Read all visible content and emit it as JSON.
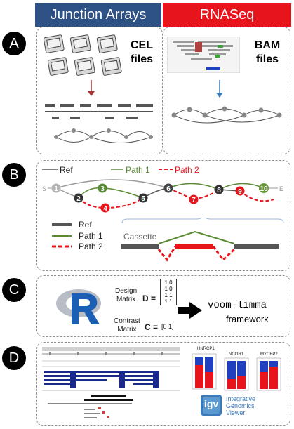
{
  "headers": {
    "left": "Junction Arrays",
    "right": "RNASeq",
    "left_color": "#2e5286",
    "right_color": "#e8141c"
  },
  "badges": [
    "A",
    "B",
    "C",
    "D"
  ],
  "panel_a": {
    "cel_line1": "CEL",
    "cel_line2": "files",
    "bam_line1": "BAM",
    "bam_line2": "files"
  },
  "panel_b": {
    "legend_top": {
      "ref": "Ref",
      "path1": "Path 1",
      "path2": "Path 2"
    },
    "start": "S",
    "end": "E",
    "nodes": [
      "1",
      "2",
      "3",
      "4",
      "5",
      "6",
      "7",
      "8",
      "9",
      "10"
    ],
    "legend_bottom": {
      "ref": "Ref",
      "path1": "Path 1",
      "path2": "Path 2"
    },
    "cassette": "Cassette",
    "colors": {
      "ref": "#555555",
      "path1": "#5a8a32",
      "path2": "#e8141c"
    }
  },
  "panel_c": {
    "design_label_1": "Design",
    "design_label_2": "Matrix",
    "design_var": "D =",
    "design_rows": [
      "1 0",
      "1 0",
      "1 1",
      "1 1"
    ],
    "contrast_label_1": "Contrast",
    "contrast_label_2": "Matrix",
    "contrast_var": "C =",
    "contrast_value": "[0  1]",
    "framework_line1": "voom-limma",
    "framework_line2": "framework"
  },
  "panel_d": {
    "chart_titles": [
      "HNRCP1",
      "NCOR1",
      "MYCBP2"
    ],
    "igv_logo": "igv",
    "igv_line1": "Integrative",
    "igv_line2": "Genomics",
    "igv_line3": "Viewer"
  }
}
